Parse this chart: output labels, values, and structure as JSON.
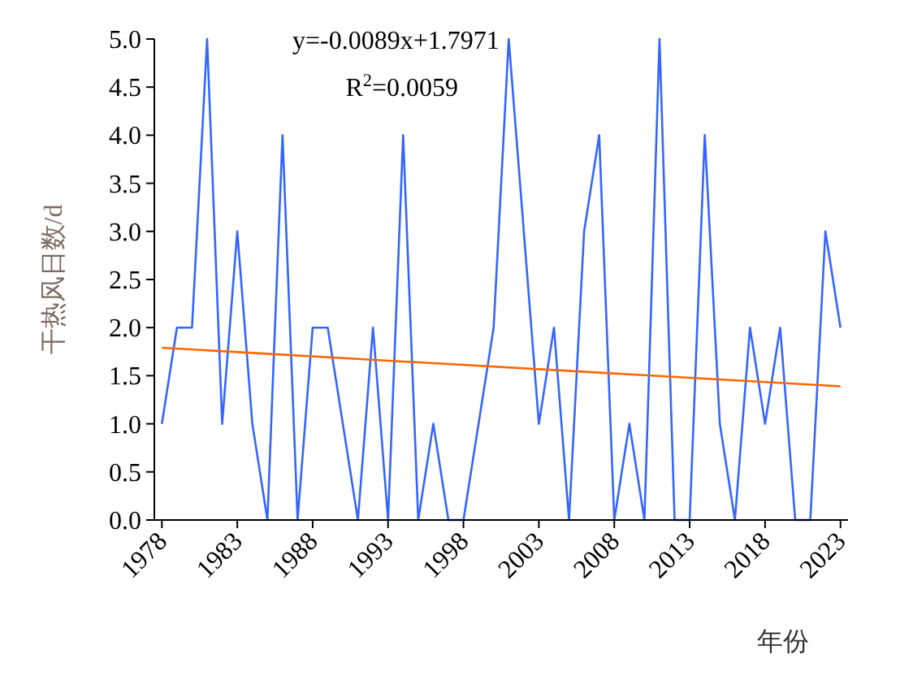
{
  "chart_data": {
    "type": "line",
    "xlabel": "年份",
    "ylabel": "干热风日数/d",
    "annotations": [
      "y=-0.0089x+1.7971",
      "R$^{2}$=0.0059"
    ],
    "x": [
      1978,
      1979,
      1980,
      1981,
      1982,
      1983,
      1984,
      1985,
      1986,
      1987,
      1988,
      1989,
      1990,
      1991,
      1992,
      1993,
      1994,
      1995,
      1996,
      1997,
      1998,
      1999,
      2000,
      2001,
      2002,
      2003,
      2004,
      2005,
      2006,
      2007,
      2008,
      2009,
      2010,
      2011,
      2012,
      2013,
      2014,
      2015,
      2016,
      2017,
      2018,
      2019,
      2020,
      2021,
      2022,
      2023
    ],
    "series": [
      {
        "color": "#3366ff",
        "values": [
          1,
          2,
          2,
          5,
          1,
          3,
          1,
          0,
          4,
          0,
          2,
          2,
          1,
          0,
          2,
          0,
          4,
          0,
          1,
          0,
          0,
          1,
          2,
          5,
          3,
          1,
          2,
          0,
          3,
          4,
          0,
          1,
          0,
          5,
          0,
          0,
          4,
          1,
          0,
          2,
          1,
          2,
          0,
          0,
          3,
          2
        ]
      },
      {
        "type": "line",
        "color": "#ff6600",
        "x": [
          1978,
          2023
        ],
        "values": [
          1.79,
          1.39
        ]
      }
    ],
    "xlim": [
      1977.5,
      2023.5
    ],
    "xticks": [
      1978,
      1983,
      1988,
      1993,
      1998,
      2003,
      2008,
      2013,
      2018,
      2023
    ],
    "ylim": [
      0,
      5
    ],
    "yticks": [
      {
        "value": 0,
        "label": "0.0"
      },
      {
        "value": 0.5,
        "label": "0.5"
      },
      {
        "value": 1,
        "label": "1.0"
      },
      {
        "value": 1.5,
        "label": "1.5"
      },
      {
        "value": 2,
        "label": "2.0"
      },
      {
        "value": 2.5,
        "label": "2.5"
      },
      {
        "value": 3,
        "label": "3.0"
      },
      {
        "value": 3.5,
        "label": "3.5"
      },
      {
        "value": 4,
        "label": "4.0"
      },
      {
        "value": 4.5,
        "label": "4.5"
      },
      {
        "value": 5,
        "label": "5.0"
      }
    ],
    "grid": false,
    "marker": "none",
    "line_style": "solid"
  }
}
